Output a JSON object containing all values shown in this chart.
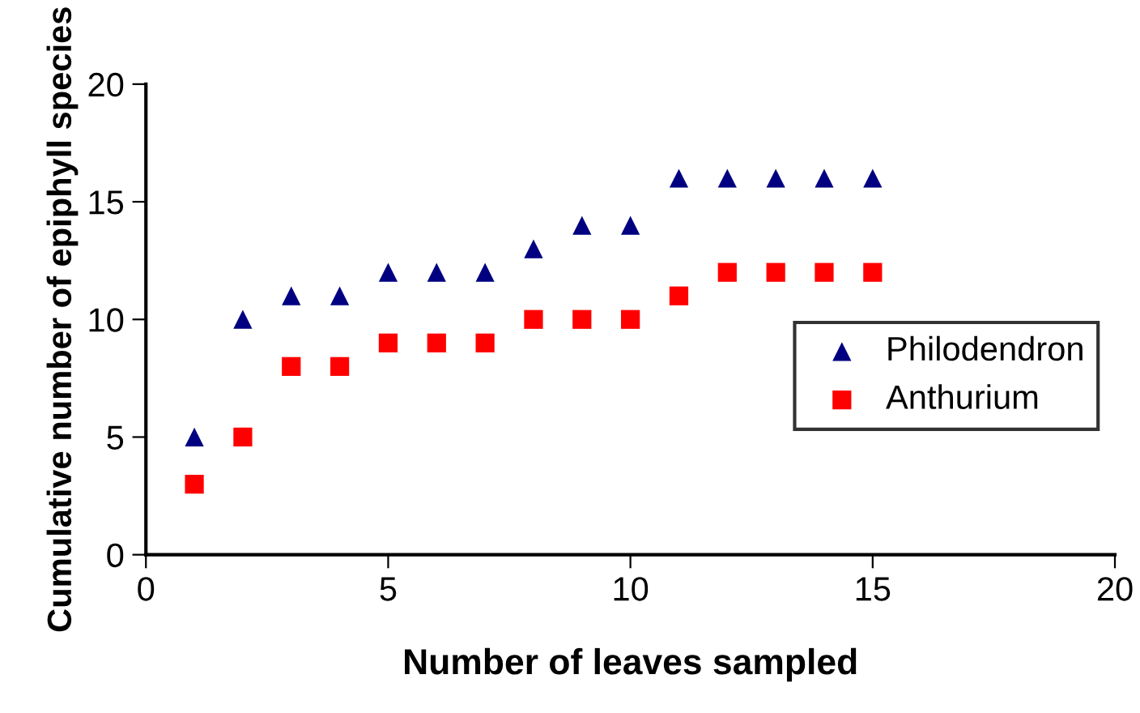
{
  "chart_data": {
    "type": "scatter",
    "xlabel": "Number of leaves sampled",
    "ylabel": "Cumulative number of epiphyll species",
    "x": [
      1,
      2,
      3,
      4,
      5,
      6,
      7,
      8,
      9,
      10,
      11,
      12,
      13,
      14,
      15
    ],
    "series": [
      {
        "name": "Philodendron",
        "color": "#000080",
        "marker": "triangle",
        "values": [
          5,
          10,
          11,
          11,
          12,
          12,
          12,
          13,
          14,
          14,
          16,
          16,
          16,
          16,
          16
        ]
      },
      {
        "name": "Anthurium",
        "color": "#ff0000",
        "marker": "square",
        "values": [
          3,
          5,
          8,
          8,
          9,
          9,
          9,
          10,
          10,
          10,
          11,
          12,
          12,
          12,
          12
        ]
      }
    ],
    "xlim": [
      0,
      20
    ],
    "xticks": [
      0,
      5,
      10,
      15,
      20
    ],
    "ylim": [
      0,
      20
    ],
    "yticks": [
      0,
      5,
      10,
      15,
      20
    ],
    "grid": false,
    "legend": "right"
  }
}
